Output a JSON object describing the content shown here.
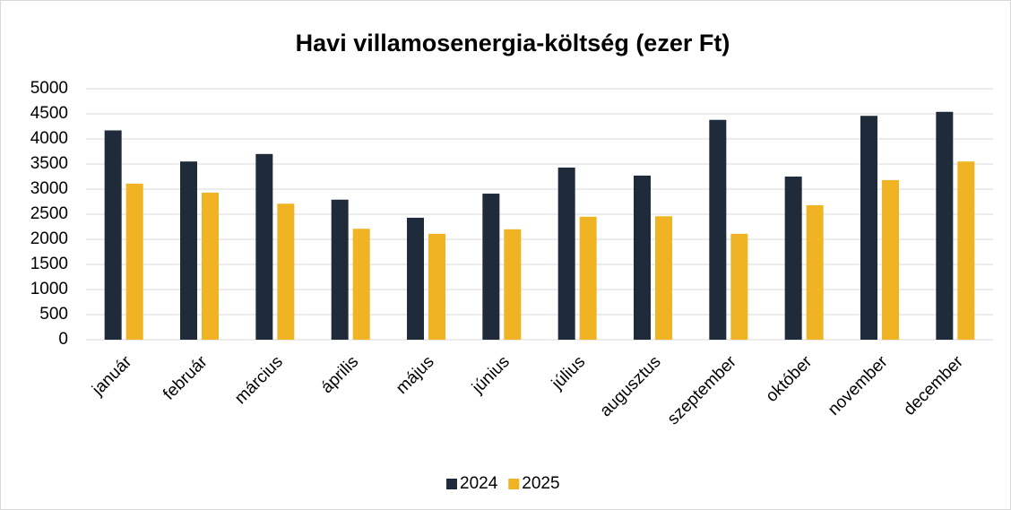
{
  "chart_data": {
    "type": "bar",
    "title": "Havi villamosenergia-költség (ezer Ft)",
    "categories": [
      "január",
      "február",
      "március",
      "április",
      "május",
      "június",
      "július",
      "augusztus",
      "szeptember",
      "október",
      "november",
      "december"
    ],
    "series": [
      {
        "name": "2024",
        "color": "#1f2b3a",
        "values": [
          4170,
          3550,
          3700,
          2790,
          2430,
          2910,
          3430,
          3270,
          4380,
          3250,
          4460,
          4540
        ]
      },
      {
        "name": "2025",
        "color": "#f0b323",
        "values": [
          3110,
          2930,
          2710,
          2210,
          2110,
          2200,
          2450,
          2460,
          2110,
          2680,
          3180,
          3550
        ]
      }
    ],
    "ylim": [
      0,
      5000
    ],
    "yticks": [
      0,
      500,
      1000,
      1500,
      2000,
      2500,
      3000,
      3500,
      4000,
      4500,
      5000
    ],
    "grid": true,
    "legend": "bottom"
  }
}
